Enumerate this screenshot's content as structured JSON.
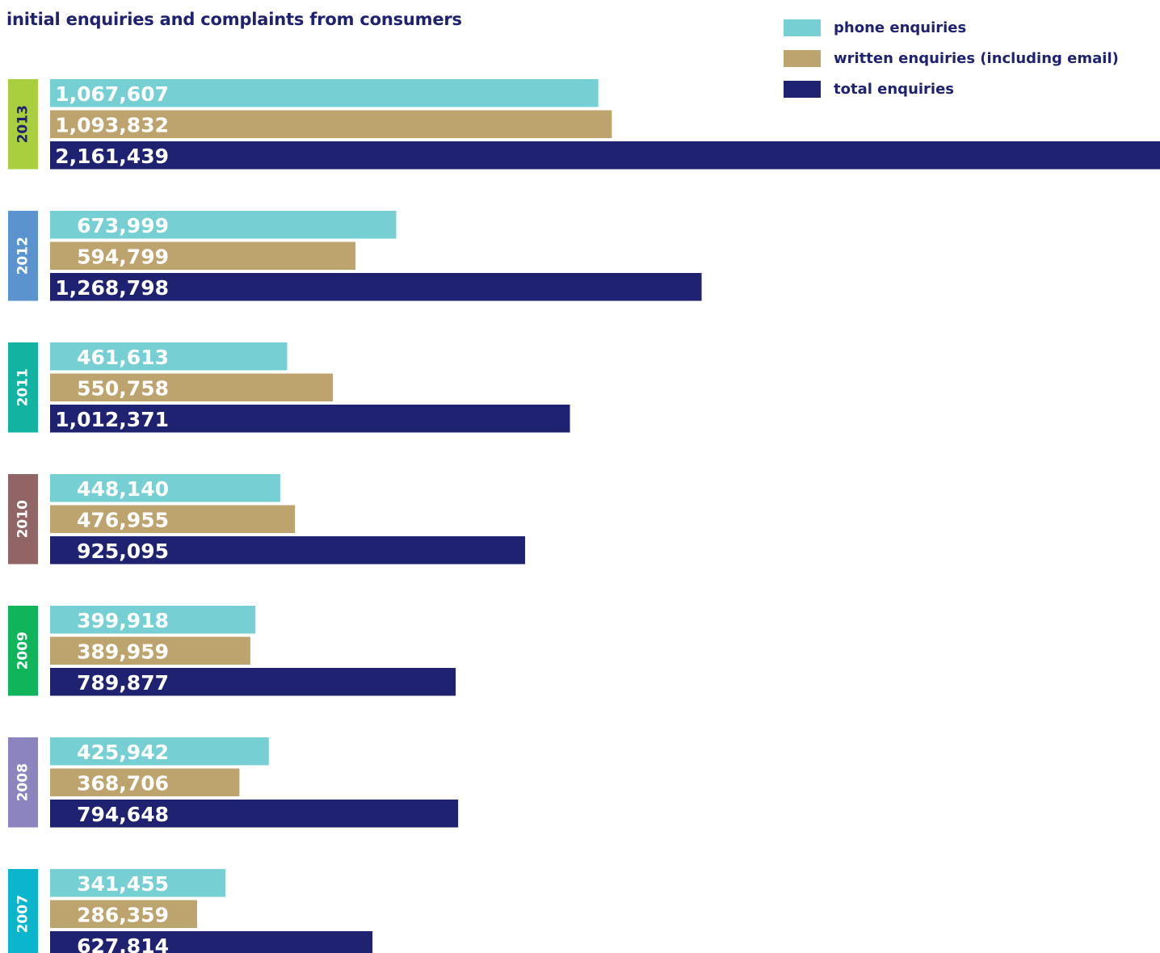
{
  "chart_data": {
    "type": "bar",
    "orientation": "horizontal",
    "title": "initial enquiries and complaints from consumers",
    "legend_placement": "top-right",
    "categories": [
      "2013",
      "2012",
      "2011",
      "2010",
      "2009",
      "2008",
      "2007"
    ],
    "category_colors": [
      "#a9cf3e",
      "#5b93cf",
      "#12b3a0",
      "#916565",
      "#10b45a",
      "#8c84be",
      "#0bb5cb"
    ],
    "series": [
      {
        "name": "phone enquiries",
        "color": "#76cfd3",
        "values": [
          1067607,
          673999,
          461613,
          448140,
          399918,
          425942,
          341455
        ],
        "labels": [
          "1,067,607",
          "673,999",
          "461,613",
          "448,140",
          "399,918",
          "425,942",
          "341,455"
        ]
      },
      {
        "name": "written enquiries (including email)",
        "color": "#bda36e",
        "values": [
          1093832,
          594799,
          550758,
          476955,
          389959,
          368706,
          286359
        ],
        "labels": [
          "1,093,832",
          "594,799",
          "550,758",
          "476,955",
          "389,959",
          "368,706",
          "286,359"
        ]
      },
      {
        "name": "total enquiries",
        "color": "#1f2270",
        "values": [
          2161439,
          1268798,
          1012371,
          925095,
          789877,
          794648,
          627814
        ],
        "labels": [
          "2,161,439",
          "1,268,798",
          "1,012,371",
          "925,095",
          "789,877",
          "794,648",
          "627,814"
        ]
      }
    ],
    "xlim": [
      0,
      2161439
    ],
    "grid": false
  }
}
